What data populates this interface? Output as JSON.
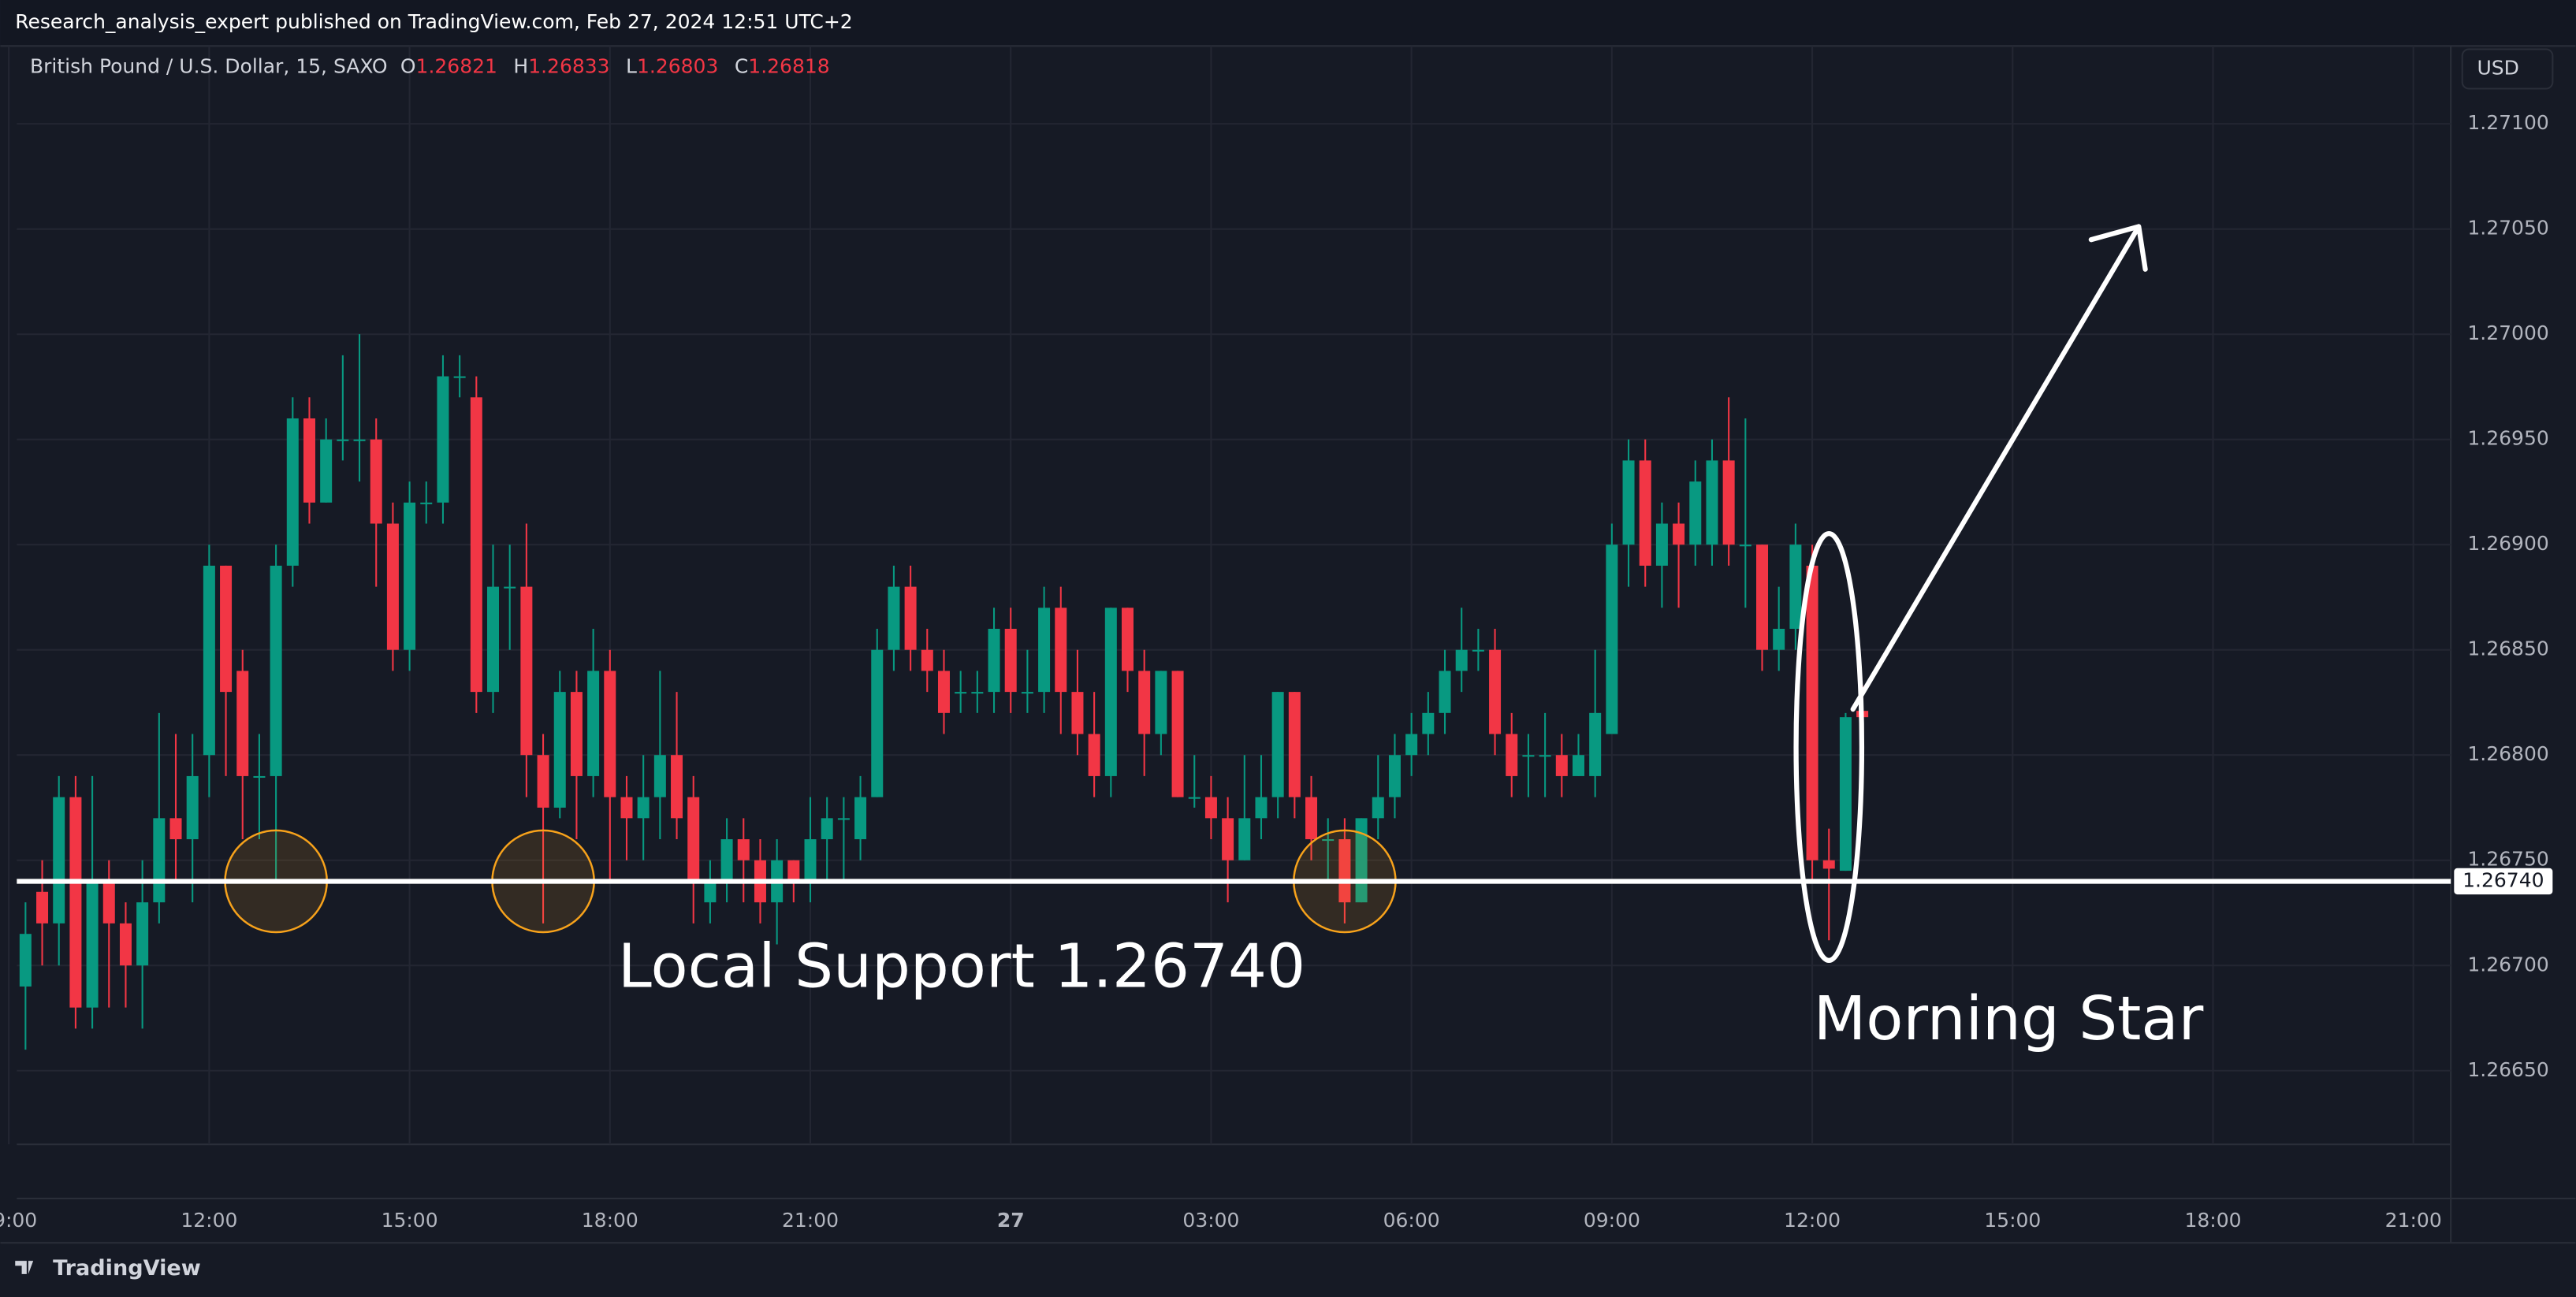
{
  "header": {
    "publisher": "Research_analysis_expert published on TradingView.com, Feb 27, 2024 12:51 UTC+2",
    "currency": "USD",
    "footer": "TradingView"
  },
  "chart_data": {
    "type": "candlestick",
    "symbol": "British Pound / U.S. Dollar, 15, SAXO",
    "ohlc_labels": [
      "O",
      "H",
      "L",
      "C"
    ],
    "ohlc_values": [
      1.26821,
      1.26833,
      1.26803,
      1.26818
    ],
    "up_color": "#089981",
    "down_color": "#f23645",
    "support": {
      "value": 1.2674,
      "label": "1.26740"
    },
    "annotations": [
      "Local Support 1.26740",
      "Morning Star"
    ],
    "xlim": [
      9.12,
      45.56
    ],
    "xticks": [
      {
        "value": 9,
        "label": "09:00"
      },
      {
        "value": 12,
        "label": "12:00"
      },
      {
        "value": 15,
        "label": "15:00"
      },
      {
        "value": 18,
        "label": "18:00"
      },
      {
        "value": 21,
        "label": "21:00"
      },
      {
        "value": 24,
        "label": "27"
      },
      {
        "value": 27,
        "label": "03:00"
      },
      {
        "value": 30,
        "label": "06:00"
      },
      {
        "value": 33,
        "label": "09:00"
      },
      {
        "value": 36,
        "label": "12:00"
      },
      {
        "value": 39,
        "label": "15:00"
      },
      {
        "value": 42,
        "label": "18:00"
      },
      {
        "value": 45,
        "label": "21:00"
      }
    ],
    "ylim": [
      1.26615,
      1.27137
    ],
    "yticks": [
      {
        "value": 1.2665,
        "label": "1.26650"
      },
      {
        "value": 1.267,
        "label": "1.26700"
      },
      {
        "value": 1.2675,
        "label": "1.26750"
      },
      {
        "value": 1.268,
        "label": "1.26800"
      },
      {
        "value": 1.2685,
        "label": "1.26850"
      },
      {
        "value": 1.269,
        "label": "1.26900"
      },
      {
        "value": 1.2695,
        "label": "1.26950"
      },
      {
        "value": 1.27,
        "label": "1.27000"
      },
      {
        "value": 1.2705,
        "label": "1.27050"
      },
      {
        "value": 1.271,
        "label": "1.27100"
      }
    ],
    "grid": true,
    "x": [
      9.25,
      9.5,
      9.75,
      10,
      10.25,
      10.5,
      10.75,
      11,
      11.25,
      11.5,
      11.75,
      12,
      12.25,
      12.5,
      12.75,
      13,
      13.25,
      13.5,
      13.75,
      14,
      14.25,
      14.5,
      14.75,
      15,
      15.25,
      15.5,
      15.75,
      16,
      16.25,
      16.5,
      16.75,
      17,
      17.25,
      17.5,
      17.75,
      18,
      18.25,
      18.5,
      18.75,
      19,
      19.25,
      19.5,
      19.75,
      20,
      20.25,
      20.5,
      20.75,
      21,
      21.25,
      21.5,
      21.75,
      22,
      22.25,
      22.5,
      22.75,
      23,
      23.25,
      23.5,
      23.75,
      24,
      24.25,
      24.5,
      24.75,
      25,
      25.25,
      25.5,
      25.75,
      26,
      26.25,
      26.5,
      26.75,
      27,
      27.25,
      27.5,
      27.75,
      28,
      28.25,
      28.5,
      28.75,
      29,
      29.25,
      29.5,
      29.75,
      30,
      30.25,
      30.5,
      30.75,
      31,
      31.25,
      31.5,
      31.75,
      32,
      32.25,
      32.5,
      32.75,
      33,
      33.25,
      33.5,
      33.75,
      34,
      34.25,
      34.5,
      34.75,
      35,
      35.25,
      35.5,
      35.75,
      36,
      36.25,
      36.5,
      36.75
    ],
    "open": [
      1.2669,
      1.26735,
      1.2672,
      1.2678,
      1.2668,
      1.2674,
      1.2672,
      1.267,
      1.2673,
      1.2677,
      1.2676,
      1.268,
      1.2689,
      1.2684,
      1.2679,
      1.2679,
      1.2689,
      1.2696,
      1.2692,
      1.2695,
      1.2695,
      1.2695,
      1.2691,
      1.2685,
      1.2692,
      1.2692,
      1.2698,
      1.2697,
      1.2683,
      1.2688,
      1.2688,
      1.268,
      1.26775,
      1.2683,
      1.2679,
      1.2684,
      1.2678,
      1.2677,
      1.2678,
      1.268,
      1.2678,
      1.2673,
      1.2674,
      1.2676,
      1.2675,
      1.2673,
      1.2675,
      1.2674,
      1.2676,
      1.2677,
      1.2676,
      1.2678,
      1.2685,
      1.2688,
      1.2685,
      1.2684,
      1.2683,
      1.2683,
      1.2683,
      1.2686,
      1.2683,
      1.2683,
      1.2687,
      1.2683,
      1.2681,
      1.2679,
      1.2687,
      1.2684,
      1.2681,
      1.2684,
      1.2678,
      1.2678,
      1.2677,
      1.2675,
      1.2677,
      1.2678,
      1.2683,
      1.2678,
      1.2676,
      1.2676,
      1.2673,
      1.2677,
      1.2678,
      1.268,
      1.2681,
      1.2682,
      1.2684,
      1.2685,
      1.2685,
      1.2681,
      1.268,
      1.268,
      1.268,
      1.2679,
      1.2679,
      1.2681,
      1.269,
      1.2694,
      1.2689,
      1.2691,
      1.269,
      1.269,
      1.2694,
      1.269,
      1.269,
      1.2685,
      1.2686,
      1.2689,
      1.2675,
      1.26745,
      1.26821
    ],
    "high": [
      1.2673,
      1.2675,
      1.2679,
      1.2679,
      1.2679,
      1.2675,
      1.2673,
      1.2675,
      1.2682,
      1.2681,
      1.2681,
      1.269,
      1.2689,
      1.2685,
      1.2681,
      1.269,
      1.2697,
      1.2697,
      1.2696,
      1.2699,
      1.27,
      1.2696,
      1.2692,
      1.2693,
      1.2693,
      1.2699,
      1.2699,
      1.2698,
      1.269,
      1.269,
      1.2691,
      1.2681,
      1.2684,
      1.2684,
      1.2686,
      1.2685,
      1.2679,
      1.268,
      1.2684,
      1.2683,
      1.2679,
      1.2675,
      1.2677,
      1.2677,
      1.2676,
      1.2676,
      1.2675,
      1.2678,
      1.2678,
      1.2678,
      1.2679,
      1.2686,
      1.2689,
      1.2689,
      1.2686,
      1.2685,
      1.2684,
      1.2684,
      1.2687,
      1.2687,
      1.2685,
      1.2688,
      1.2688,
      1.2685,
      1.2683,
      1.2687,
      1.2687,
      1.2685,
      1.2684,
      1.2684,
      1.268,
      1.2679,
      1.2678,
      1.268,
      1.268,
      1.2683,
      1.2683,
      1.2679,
      1.2677,
      1.2677,
      1.2677,
      1.268,
      1.2681,
      1.2682,
      1.2683,
      1.2685,
      1.2687,
      1.2686,
      1.2686,
      1.2682,
      1.2681,
      1.2682,
      1.2681,
      1.2681,
      1.2685,
      1.2691,
      1.2695,
      1.2695,
      1.2692,
      1.2692,
      1.2694,
      1.2695,
      1.2697,
      1.2696,
      1.269,
      1.2688,
      1.2691,
      1.269,
      1.26765,
      1.2682,
      1.26833
    ],
    "low": [
      1.2666,
      1.267,
      1.267,
      1.2667,
      1.2667,
      1.2668,
      1.2668,
      1.2667,
      1.2672,
      1.2674,
      1.2673,
      1.2678,
      1.2679,
      1.2676,
      1.2676,
      1.2674,
      1.2688,
      1.2691,
      1.2692,
      1.2694,
      1.2693,
      1.2688,
      1.2684,
      1.2684,
      1.2691,
      1.2691,
      1.2697,
      1.2682,
      1.2682,
      1.2685,
      1.2678,
      1.2672,
      1.2677,
      1.2676,
      1.2678,
      1.2674,
      1.2675,
      1.2675,
      1.2676,
      1.2676,
      1.2672,
      1.2672,
      1.2673,
      1.2673,
      1.2672,
      1.2671,
      1.2673,
      1.2673,
      1.2674,
      1.2674,
      1.2675,
      1.2678,
      1.2684,
      1.2684,
      1.2683,
      1.2681,
      1.2682,
      1.2682,
      1.2682,
      1.2682,
      1.2682,
      1.2682,
      1.2681,
      1.268,
      1.2678,
      1.2678,
      1.2683,
      1.2679,
      1.268,
      1.2678,
      1.26775,
      1.2676,
      1.2673,
      1.2675,
      1.2676,
      1.2677,
      1.2677,
      1.2675,
      1.2674,
      1.2672,
      1.2673,
      1.2676,
      1.2677,
      1.2679,
      1.268,
      1.2681,
      1.2683,
      1.2684,
      1.268,
      1.2678,
      1.2678,
      1.2678,
      1.2678,
      1.2679,
      1.2678,
      1.2681,
      1.2688,
      1.2688,
      1.2687,
      1.2687,
      1.2689,
      1.2689,
      1.2689,
      1.2687,
      1.2684,
      1.2684,
      1.2685,
      1.2674,
      1.26712,
      1.26745,
      1.26803
    ],
    "close": [
      1.26715,
      1.2672,
      1.2678,
      1.2668,
      1.2674,
      1.2672,
      1.267,
      1.2673,
      1.2677,
      1.2676,
      1.2679,
      1.2689,
      1.2683,
      1.2679,
      1.2679,
      1.2689,
      1.2696,
      1.2692,
      1.2695,
      1.2695,
      1.2695,
      1.2691,
      1.2685,
      1.2692,
      1.2692,
      1.2698,
      1.2698,
      1.2683,
      1.2688,
      1.2688,
      1.268,
      1.26775,
      1.2683,
      1.2679,
      1.2684,
      1.2678,
      1.2677,
      1.2678,
      1.268,
      1.2677,
      1.2674,
      1.2674,
      1.2676,
      1.2675,
      1.2673,
      1.2675,
      1.2674,
      1.2676,
      1.2677,
      1.2677,
      1.2678,
      1.2685,
      1.2688,
      1.2685,
      1.2684,
      1.2682,
      1.2683,
      1.2683,
      1.2686,
      1.2683,
      1.2683,
      1.2687,
      1.2683,
      1.2681,
      1.2679,
      1.2687,
      1.2684,
      1.2681,
      1.2684,
      1.2678,
      1.2678,
      1.2677,
      1.2675,
      1.2677,
      1.2678,
      1.2683,
      1.2678,
      1.2676,
      1.2676,
      1.2673,
      1.2677,
      1.2678,
      1.268,
      1.2681,
      1.2682,
      1.2684,
      1.2685,
      1.2685,
      1.2681,
      1.2679,
      1.268,
      1.268,
      1.2679,
      1.268,
      1.2682,
      1.269,
      1.2694,
      1.2689,
      1.2691,
      1.269,
      1.2693,
      1.2694,
      1.269,
      1.269,
      1.2685,
      1.2686,
      1.269,
      1.2675,
      1.26746,
      1.26818,
      1.26818
    ]
  }
}
